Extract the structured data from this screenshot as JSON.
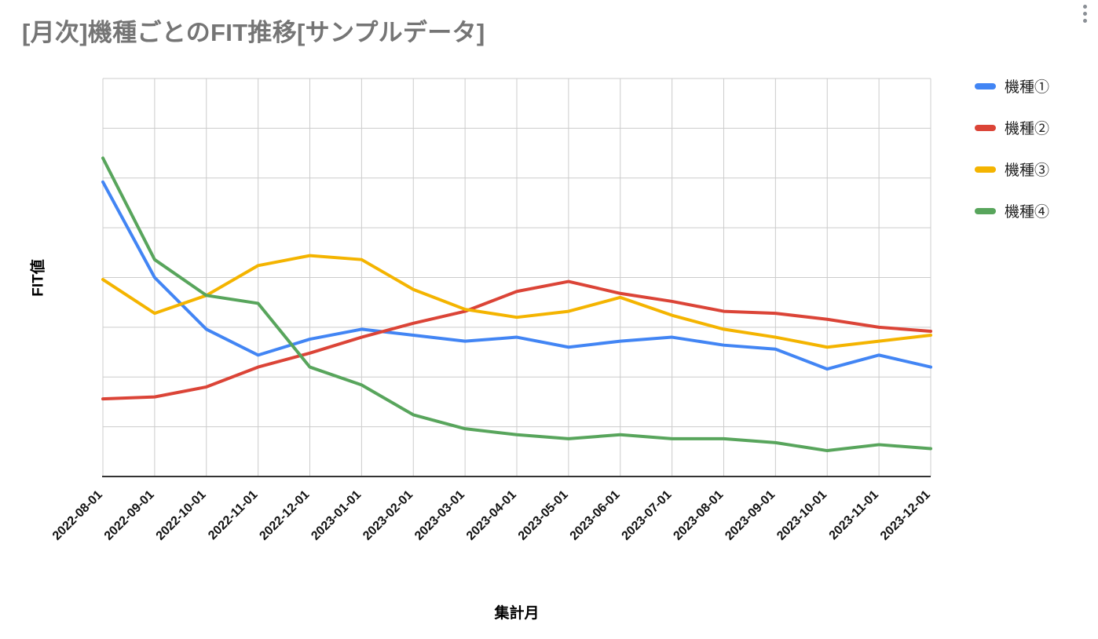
{
  "icons": {
    "menu": "vertical-ellipsis"
  },
  "chart_data": {
    "type": "line",
    "title": "[月次]機種ごとのFIT推移[サンプルデータ]",
    "xlabel": "集計月",
    "ylabel": "FIT値",
    "categories": [
      "2022-08-01",
      "2022-09-01",
      "2022-10-01",
      "2022-11-01",
      "2022-12-01",
      "2023-01-01",
      "2023-02-01",
      "2023-03-01",
      "2023-04-01",
      "2023-05-01",
      "2023-06-01",
      "2023-07-01",
      "2023-08-01",
      "2023-09-01",
      "2023-10-01",
      "2023-11-01",
      "2023-12-01"
    ],
    "series": [
      {
        "name": "機種①",
        "color": "#4285F4",
        "values": [
          74,
          50,
          37,
          30.5,
          34.5,
          37,
          35.5,
          34,
          35,
          32.5,
          34,
          35,
          33,
          32,
          27,
          30.5,
          27.5
        ]
      },
      {
        "name": "機種②",
        "color": "#DB4437",
        "values": [
          19.5,
          20,
          22.5,
          27.5,
          31,
          35,
          38.5,
          41.5,
          46.5,
          49,
          46,
          44,
          41.5,
          41,
          39.5,
          37.5,
          36.5
        ]
      },
      {
        "name": "機種③",
        "color": "#F4B400",
        "values": [
          49.5,
          41,
          45.5,
          53,
          55.5,
          54.5,
          47,
          42,
          40,
          41.5,
          45,
          40.5,
          37,
          35,
          32.5,
          34,
          35.5
        ]
      },
      {
        "name": "機種④",
        "color": "#58A55C",
        "values": [
          80,
          54.5,
          45.5,
          43.5,
          27.5,
          23,
          15.5,
          12,
          10.5,
          9.5,
          10.5,
          9.5,
          9.5,
          8.5,
          6.5,
          8,
          7
        ]
      }
    ],
    "ylim": [
      0,
      100
    ],
    "y_gridline_interval": 12.5,
    "grid": true,
    "legend_position": "right",
    "tick_rotation_deg": -45,
    "colors": {
      "title": "#757575",
      "gridline": "#cccccc",
      "axis": "#333333",
      "tick_label": "#111111",
      "legend_text": "#212121",
      "menu_icon": "#8a8f95"
    }
  }
}
